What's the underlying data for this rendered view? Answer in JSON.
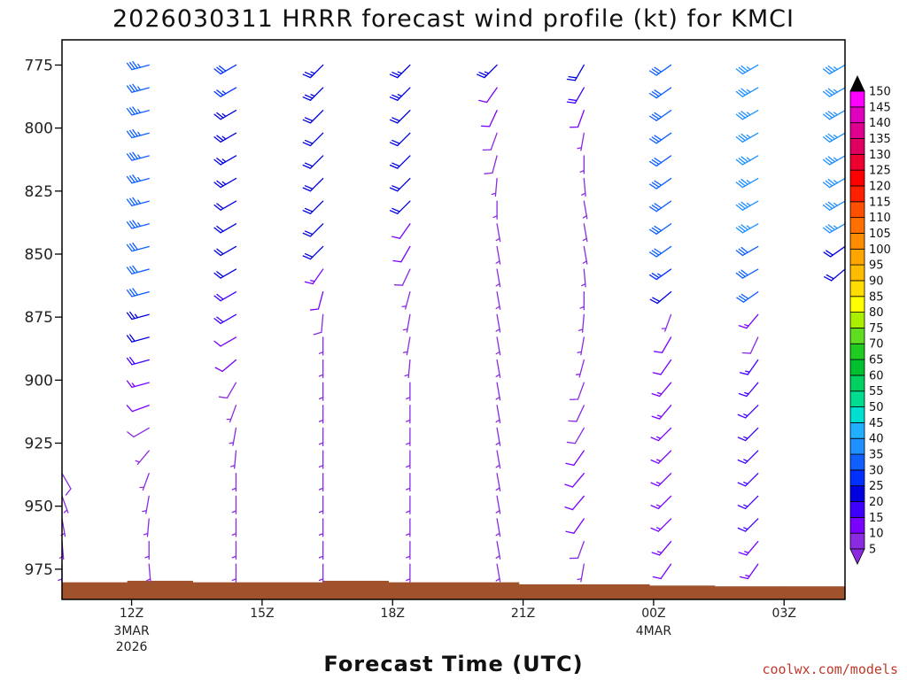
{
  "chart_data": {
    "type": "wind-barb-time-height",
    "title": "2026030311 HRRR forecast wind profile (kt) for KMCI",
    "xlabel": "Forecast Time (UTC)",
    "ylabel": "",
    "credit": "coolwx.com/models",
    "y_axis": {
      "unit": "hPa",
      "ylim": [
        987,
        765
      ],
      "ticks": [
        775,
        800,
        825,
        850,
        875,
        900,
        925,
        950,
        975
      ]
    },
    "x_axis": {
      "xlim": [
        10.4,
        28.4
      ],
      "ticks": [
        {
          "hour": 12,
          "label": "12Z",
          "sub": [
            "3MAR",
            "2026"
          ]
        },
        {
          "hour": 15,
          "label": "15Z",
          "sub": []
        },
        {
          "hour": 18,
          "label": "18Z",
          "sub": []
        },
        {
          "hour": 21,
          "label": "21Z",
          "sub": []
        },
        {
          "hour": 24,
          "label": "00Z",
          "sub": [
            "4MAR"
          ]
        },
        {
          "hour": 27,
          "label": "03Z",
          "sub": []
        }
      ]
    },
    "levels": [
      775,
      784,
      793,
      802,
      811,
      820,
      829,
      838,
      847,
      856,
      865,
      874,
      883,
      892,
      901,
      910,
      919,
      928,
      937,
      946,
      955,
      964,
      973
    ],
    "ground_hpa": [
      980.2,
      979.6,
      980.2,
      980.2,
      979.6,
      980.2,
      980.2,
      981.0,
      981.0,
      981.5,
      981.8,
      981.8
    ],
    "ground_color": "#a0522d",
    "colorbar": {
      "labels": [
        "5",
        "10",
        "15",
        "20",
        "25",
        "30",
        "35",
        "40",
        "45",
        "50",
        "55",
        "60",
        "65",
        "70",
        "75",
        "80",
        "85",
        "90",
        "95",
        "100",
        "105",
        "110",
        "115",
        "120",
        "125",
        "130",
        "135",
        "140",
        "145",
        "150"
      ],
      "colors": [
        "#8a2be2",
        "#7a00ff",
        "#3f00ff",
        "#0000e0",
        "#0030ff",
        "#1060ff",
        "#1e90ff",
        "#20b0ff",
        "#00e0d0",
        "#00dd90",
        "#00d060",
        "#00c030",
        "#20cc20",
        "#60dd20",
        "#aaee00",
        "#ffff00",
        "#ffdd00",
        "#ffbb00",
        "#ffa500",
        "#ff8c00",
        "#ff7000",
        "#ff5000",
        "#ff2000",
        "#ff0000",
        "#ee0030",
        "#e00060",
        "#e00090",
        "#e000c0",
        "#ff00ff"
      ]
    },
    "series": [
      {
        "hour": 10.4,
        "speeds": [
          0,
          0,
          0,
          0,
          0,
          0,
          0,
          0,
          0,
          0,
          0,
          0,
          0,
          0,
          0,
          0,
          0,
          0,
          8,
          7,
          6,
          7,
          7
        ],
        "dirs": [
          0,
          0,
          0,
          0,
          0,
          0,
          0,
          0,
          0,
          0,
          0,
          0,
          0,
          0,
          0,
          0,
          0,
          0,
          150,
          160,
          170,
          175,
          180
        ]
      },
      {
        "hour": 12.4,
        "speeds": [
          33,
          33,
          34,
          33,
          33,
          34,
          34,
          33,
          32,
          32,
          30,
          24,
          20,
          18,
          13,
          10,
          8,
          6,
          5,
          5,
          6,
          7,
          7
        ],
        "dirs": [
          255,
          255,
          255,
          255,
          255,
          255,
          255,
          255,
          255,
          255,
          255,
          255,
          255,
          255,
          255,
          250,
          240,
          220,
          200,
          190,
          185,
          180,
          175
        ]
      },
      {
        "hour": 14.4,
        "speeds": [
          28,
          27,
          24,
          24,
          24,
          24,
          22,
          21,
          21,
          20,
          18,
          18,
          12,
          11,
          9,
          6,
          5,
          6,
          7,
          7,
          7,
          7,
          7
        ],
        "dirs": [
          240,
          240,
          240,
          240,
          240,
          240,
          240,
          240,
          240,
          240,
          240,
          240,
          240,
          230,
          210,
          200,
          190,
          185,
          180,
          180,
          180,
          180,
          180
        ]
      },
      {
        "hour": 16.4,
        "speeds": [
          24,
          23,
          22,
          22,
          22,
          22,
          22,
          22,
          22,
          13,
          11,
          8,
          6,
          7,
          7,
          7,
          7,
          7,
          7,
          7,
          7,
          7,
          7
        ],
        "dirs": [
          225,
          225,
          225,
          225,
          225,
          225,
          225,
          225,
          225,
          215,
          195,
          185,
          180,
          180,
          180,
          180,
          180,
          180,
          180,
          180,
          180,
          180,
          180
        ]
      },
      {
        "hour": 18.4,
        "speeds": [
          24,
          24,
          22,
          21,
          21,
          21,
          20,
          11,
          10,
          9,
          7,
          7,
          7,
          7,
          6,
          6,
          6,
          6,
          6,
          6,
          6,
          6,
          6
        ],
        "dirs": [
          225,
          225,
          225,
          225,
          225,
          225,
          225,
          215,
          210,
          205,
          195,
          190,
          190,
          185,
          180,
          180,
          180,
          180,
          180,
          180,
          180,
          180,
          180
        ]
      },
      {
        "hour": 20.4,
        "speeds": [
          24,
          12,
          10,
          9,
          8,
          7,
          7,
          7,
          6,
          6,
          6,
          6,
          6,
          6,
          7,
          7,
          7,
          7,
          7,
          7,
          7,
          7,
          7
        ],
        "dirs": [
          225,
          215,
          205,
          200,
          195,
          185,
          180,
          170,
          170,
          170,
          170,
          170,
          170,
          170,
          170,
          170,
          170,
          170,
          170,
          170,
          170,
          170,
          170
        ]
      },
      {
        "hour": 22.4,
        "speeds": [
          21,
          18,
          11,
          7,
          6,
          6,
          5,
          5,
          5,
          5,
          6,
          7,
          7,
          7,
          8,
          8,
          9,
          10,
          11,
          11,
          10,
          8,
          6
        ],
        "dirs": [
          210,
          210,
          200,
          190,
          180,
          175,
          170,
          170,
          170,
          175,
          180,
          185,
          190,
          195,
          200,
          205,
          210,
          215,
          220,
          220,
          215,
          200,
          190
        ]
      },
      {
        "hour": 24.4,
        "speeds": [
          31,
          31,
          30,
          30,
          30,
          30,
          30,
          30,
          30,
          26,
          20,
          6,
          10,
          12,
          14,
          14,
          14,
          14,
          14,
          14,
          14,
          13,
          11
        ],
        "dirs": [
          235,
          235,
          235,
          235,
          235,
          235,
          235,
          235,
          235,
          235,
          230,
          200,
          210,
          215,
          220,
          220,
          225,
          225,
          225,
          225,
          225,
          220,
          215
        ]
      },
      {
        "hour": 26.4,
        "speeds": [
          37,
          37,
          37,
          37,
          37,
          37,
          37,
          37,
          32,
          31,
          30,
          14,
          8,
          16,
          16,
          16,
          17,
          17,
          15,
          15,
          15,
          14,
          13
        ],
        "dirs": [
          240,
          240,
          240,
          240,
          240,
          240,
          240,
          240,
          240,
          240,
          235,
          220,
          205,
          215,
          220,
          225,
          225,
          225,
          225,
          225,
          225,
          220,
          215
        ]
      },
      {
        "hour": 28.4,
        "speeds": [
          35,
          35,
          35,
          35,
          35,
          35,
          35,
          35,
          22,
          20,
          0,
          0,
          0,
          0,
          0,
          0,
          0,
          0,
          0,
          0,
          0,
          0,
          0
        ],
        "dirs": [
          240,
          240,
          240,
          240,
          240,
          240,
          240,
          240,
          235,
          230,
          0,
          0,
          0,
          0,
          0,
          0,
          0,
          0,
          0,
          0,
          0,
          0,
          0
        ]
      }
    ]
  }
}
